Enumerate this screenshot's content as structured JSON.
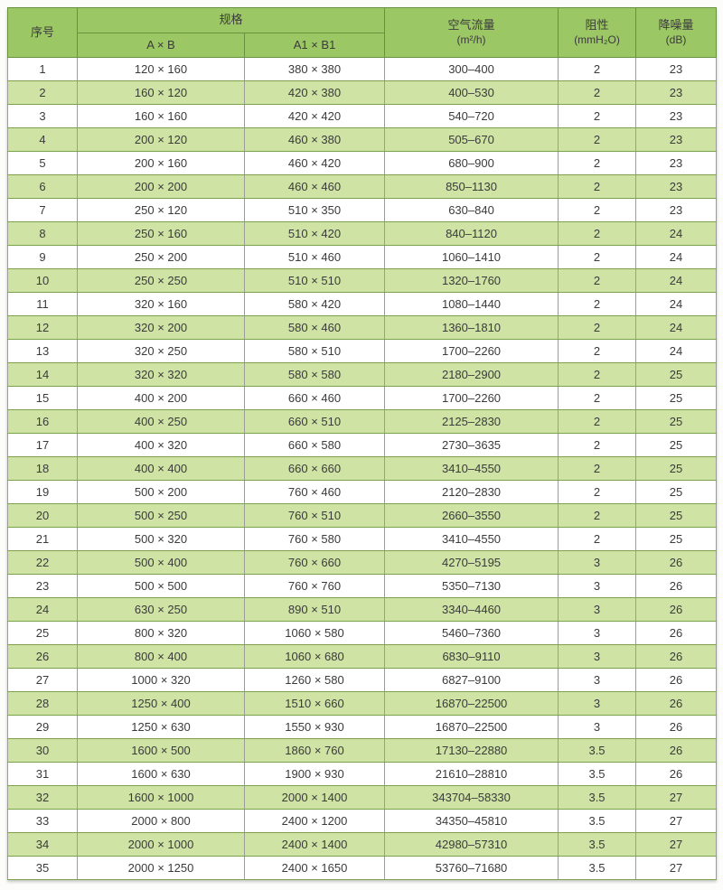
{
  "colors": {
    "header_bg": "#9cc765",
    "row_alt_bg": "#cfe3a4",
    "row_border": "#7aa24c",
    "col_border": "#9c9c9c",
    "header_border": "#68923f",
    "text_color": "#3b3b3b"
  },
  "table": {
    "header": {
      "serial": "序号",
      "spec": "规格",
      "spec_ab": "A × B",
      "spec_a1b1": "A1 × B1",
      "airflow_title": "空气流量",
      "airflow_unit": "(m²/h)",
      "resistance_title": "阻性",
      "resistance_unit": "(mmH₂O)",
      "noise_title": "降噪量",
      "noise_unit": "(dB)"
    },
    "rows": [
      [
        "1",
        "120 × 160",
        "380 × 380",
        "300–400",
        "2",
        "23"
      ],
      [
        "2",
        "160 × 120",
        "420 × 380",
        "400–530",
        "2",
        "23"
      ],
      [
        "3",
        "160 × 160",
        "420 × 420",
        "540–720",
        "2",
        "23"
      ],
      [
        "4",
        "200 × 120",
        "460 × 380",
        "505–670",
        "2",
        "23"
      ],
      [
        "5",
        "200 × 160",
        "460 × 420",
        "680–900",
        "2",
        "23"
      ],
      [
        "6",
        "200 × 200",
        "460 × 460",
        "850–1130",
        "2",
        "23"
      ],
      [
        "7",
        "250 × 120",
        "510 × 350",
        "630–840",
        "2",
        "23"
      ],
      [
        "8",
        "250 × 160",
        "510 × 420",
        "840–1120",
        "2",
        "24"
      ],
      [
        "9",
        "250 × 200",
        "510 × 460",
        "1060–1410",
        "2",
        "24"
      ],
      [
        "10",
        "250 × 250",
        "510 × 510",
        "1320–1760",
        "2",
        "24"
      ],
      [
        "11",
        "320 × 160",
        "580 × 420",
        "1080–1440",
        "2",
        "24"
      ],
      [
        "12",
        "320 × 200",
        "580 × 460",
        "1360–1810",
        "2",
        "24"
      ],
      [
        "13",
        "320 × 250",
        "580 × 510",
        "1700–2260",
        "2",
        "24"
      ],
      [
        "14",
        "320 × 320",
        "580 × 580",
        "2180–2900",
        "2",
        "25"
      ],
      [
        "15",
        "400 × 200",
        "660 × 460",
        "1700–2260",
        "2",
        "25"
      ],
      [
        "16",
        "400 × 250",
        "660 × 510",
        "2125–2830",
        "2",
        "25"
      ],
      [
        "17",
        "400 × 320",
        "660 × 580",
        "2730–3635",
        "2",
        "25"
      ],
      [
        "18",
        "400 × 400",
        "660 × 660",
        "3410–4550",
        "2",
        "25"
      ],
      [
        "19",
        "500 × 200",
        "760 × 460",
        "2120–2830",
        "2",
        "25"
      ],
      [
        "20",
        "500 × 250",
        "760 × 510",
        "2660–3550",
        "2",
        "25"
      ],
      [
        "21",
        "500 × 320",
        "760 × 580",
        "3410–4550",
        "2",
        "25"
      ],
      [
        "22",
        "500 × 400",
        "760 × 660",
        "4270–5195",
        "3",
        "26"
      ],
      [
        "23",
        "500 × 500",
        "760 × 760",
        "5350–7130",
        "3",
        "26"
      ],
      [
        "24",
        "630 × 250",
        "890 × 510",
        "3340–4460",
        "3",
        "26"
      ],
      [
        "25",
        "800 × 320",
        "1060 × 580",
        "5460–7360",
        "3",
        "26"
      ],
      [
        "26",
        "800 × 400",
        "1060 × 680",
        "6830–9110",
        "3",
        "26"
      ],
      [
        "27",
        "1000 × 320",
        "1260 × 580",
        "6827–9100",
        "3",
        "26"
      ],
      [
        "28",
        "1250 × 400",
        "1510 × 660",
        "16870–22500",
        "3",
        "26"
      ],
      [
        "29",
        "1250 × 630",
        "1550 × 930",
        "16870–22500",
        "3",
        "26"
      ],
      [
        "30",
        "1600 × 500",
        "1860 × 760",
        "17130–22880",
        "3.5",
        "26"
      ],
      [
        "31",
        "1600 × 630",
        "1900 × 930",
        "21610–28810",
        "3.5",
        "26"
      ],
      [
        "32",
        "1600 × 1000",
        "2000 × 1400",
        "343704–58330",
        "3.5",
        "27"
      ],
      [
        "33",
        "2000 × 800",
        "2400 × 1200",
        "34350–45810",
        "3.5",
        "27"
      ],
      [
        "34",
        "2000 × 1000",
        "2400 × 1400",
        "42980–57310",
        "3.5",
        "27"
      ],
      [
        "35",
        "2000 × 1250",
        "2400 × 1650",
        "53760–71680",
        "3.5",
        "27"
      ]
    ]
  }
}
